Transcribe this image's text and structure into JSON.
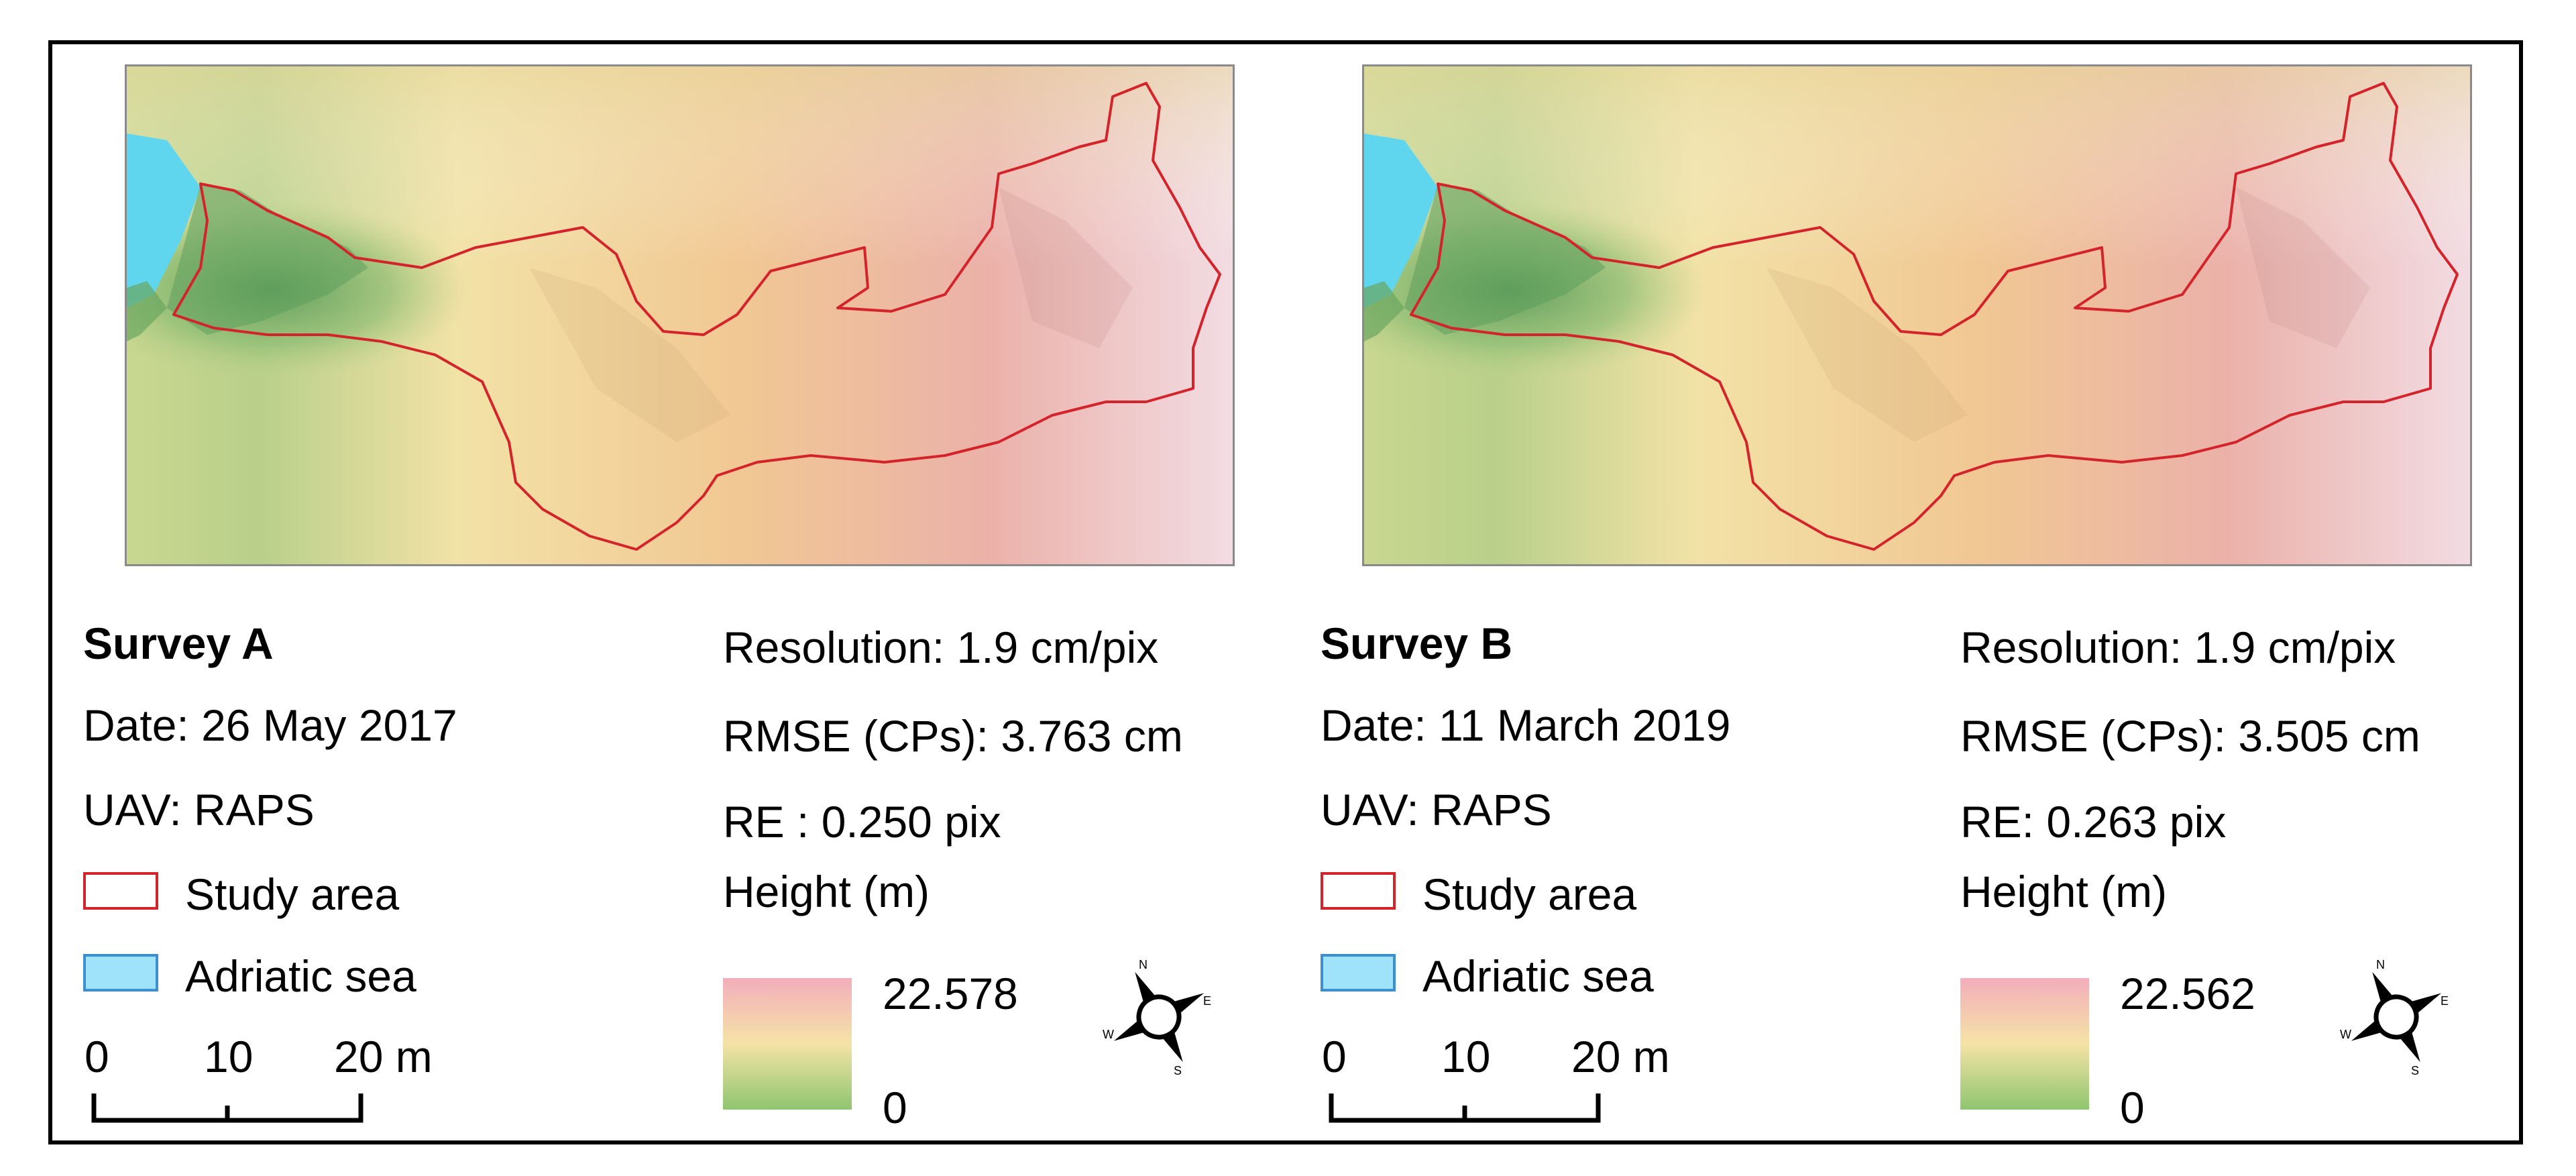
{
  "panels": [
    {
      "title": "Survey A",
      "date": "Date: 26 May 2017",
      "uav": "UAV: RAPS",
      "legend_study": "Study area",
      "legend_sea": "Adriatic sea",
      "scale_labels": [
        "0",
        "10",
        "20 m"
      ],
      "resolution": "Resolution: 1.9 cm/pix",
      "rmse": "RMSE (CPs): 3.763 cm",
      "re": "RE : 0.250 pix",
      "height_title": "Height (m)",
      "height_max": "22.578",
      "height_min": "0",
      "compass": {
        "n": "N",
        "e": "E",
        "s": "S",
        "w": "W"
      }
    },
    {
      "title": "Survey B",
      "date": "Date: 11 March 2019",
      "uav": "UAV: RAPS",
      "legend_study": "Study area",
      "legend_sea": "Adriatic sea",
      "scale_labels": [
        "0",
        "10",
        "20 m"
      ],
      "resolution": "Resolution: 1.9 cm/pix",
      "rmse": "RMSE (CPs): 3.505 cm",
      "re": "RE: 0.263 pix",
      "height_title": "Height (m)",
      "height_max": "22.562",
      "height_min": "0",
      "compass": {
        "n": "N",
        "e": "E",
        "s": "S",
        "w": "W"
      }
    }
  ],
  "colors": {
    "study_area_outline": "#d3242b",
    "sea": "#9fe3fb",
    "height_low": "#8fc66f",
    "height_mid": "#f5e3a6",
    "height_high": "#f3aebc"
  }
}
